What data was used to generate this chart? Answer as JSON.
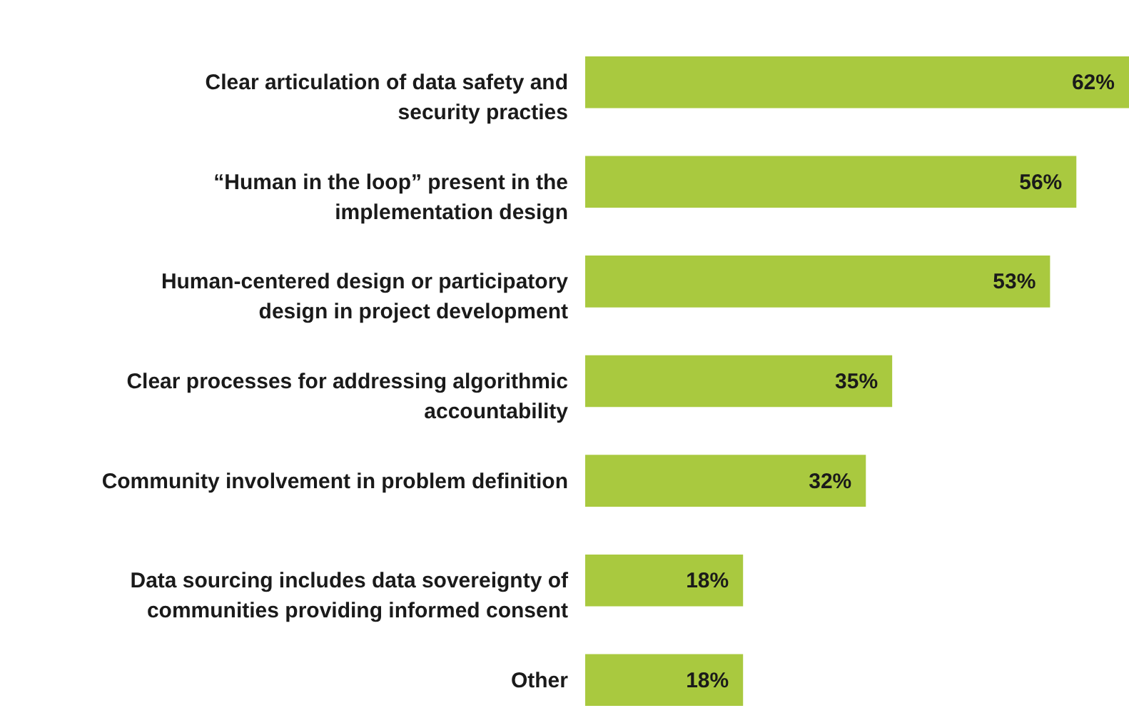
{
  "chart_data": {
    "type": "bar",
    "orientation": "horizontal",
    "categories": [
      "Clear articulation of data safety and security practies",
      "“Human in the loop” present in the implementation design",
      "Human-centered design or participatory design in project development",
      "Clear processes for addressing algorithmic accountability",
      "Community involvement in problem definition",
      "Data sourcing includes data sovereignty of communities providing informed consent",
      "Other"
    ],
    "values": [
      62,
      56,
      53,
      35,
      32,
      18,
      18
    ],
    "value_labels": [
      "62%",
      "56%",
      "53%",
      "35%",
      "32%",
      "18%",
      "18%"
    ],
    "color": "#a9c93f",
    "grid": false
  }
}
